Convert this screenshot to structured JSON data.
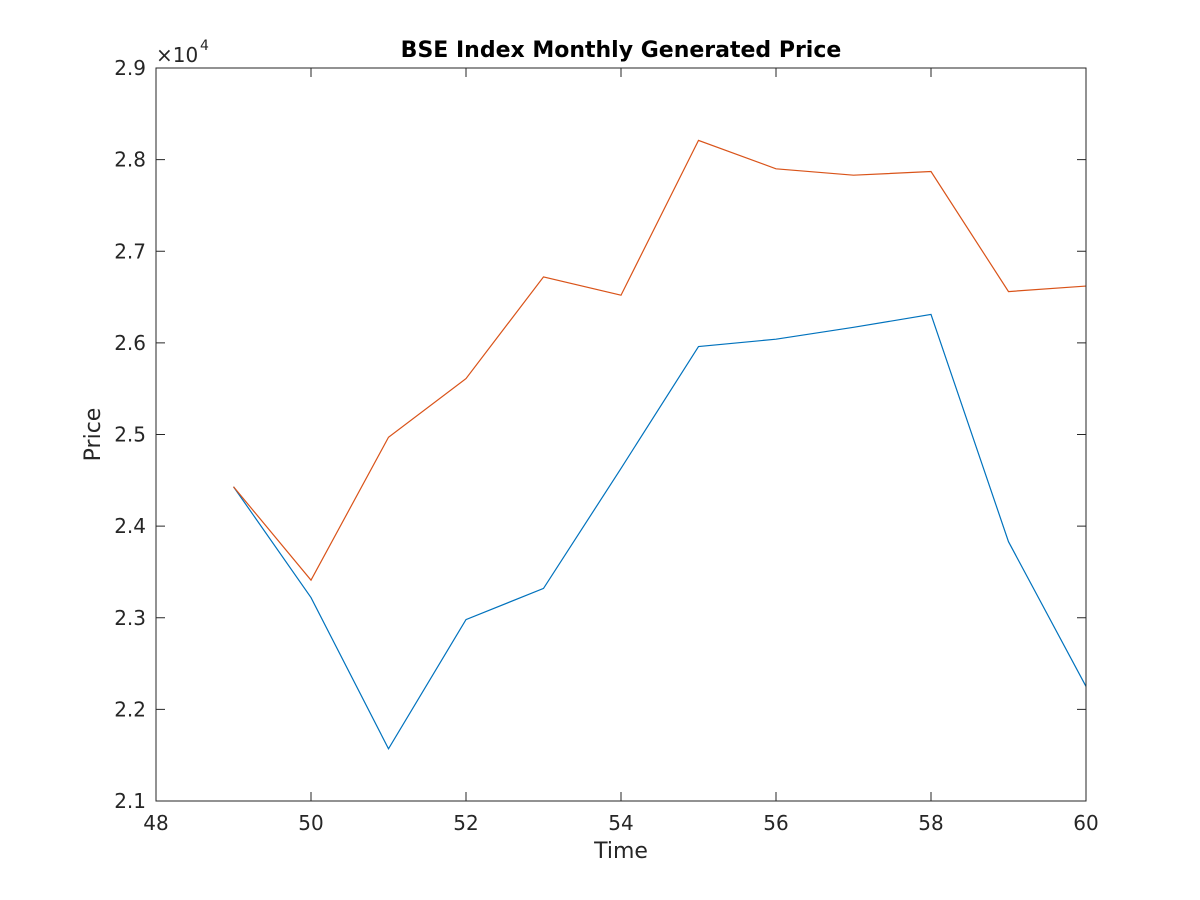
{
  "chart_data": {
    "type": "line",
    "title": "BSE Index Monthly Generated Price",
    "xlabel": "Time",
    "ylabel": "Price",
    "xlim": [
      48,
      60
    ],
    "ylim": [
      21000,
      29000
    ],
    "x_ticks": [
      48,
      50,
      52,
      54,
      56,
      58,
      60
    ],
    "y_ticks": [
      21000,
      22000,
      23000,
      24000,
      25000,
      26000,
      27000,
      28000,
      29000
    ],
    "x_tick_labels": [
      "48",
      "50",
      "52",
      "54",
      "56",
      "58",
      "60"
    ],
    "y_tick_labels": [
      "2.1",
      "2.2",
      "2.3",
      "2.4",
      "2.5",
      "2.6",
      "2.7",
      "2.8",
      "2.9"
    ],
    "y_exponent_label": "×10",
    "y_exponent_power": "4",
    "grid": false,
    "x": [
      49,
      50,
      51,
      52,
      53,
      54,
      55,
      56,
      57,
      58,
      59,
      60
    ],
    "series": [
      {
        "color": "#0072BD",
        "values": [
          24430,
          23220,
          21570,
          22980,
          23320,
          24630,
          25960,
          26040,
          26170,
          26310,
          23830,
          22250
        ]
      },
      {
        "color": "#D95319",
        "values": [
          24430,
          23410,
          24970,
          25610,
          26720,
          26520,
          28210,
          27900,
          27830,
          27870,
          26560,
          26620
        ]
      }
    ]
  }
}
